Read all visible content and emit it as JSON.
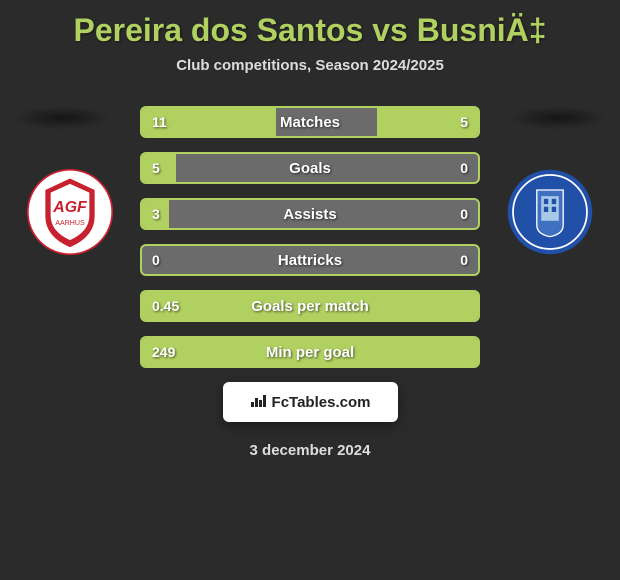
{
  "title": "Pereira dos Santos vs BusniÄ‡",
  "subtitle": "Club competitions, Season 2024/2025",
  "date": "3 december 2024",
  "footer": {
    "label": "FcTables.com"
  },
  "badges": {
    "left": {
      "primary_color": "#c8202e",
      "secondary_color": "#ffffff",
      "text": "AGF"
    },
    "right": {
      "primary_color": "#2050a8",
      "secondary_color": "#ffffff",
      "text": ""
    }
  },
  "stats": [
    {
      "label": "Matches",
      "left_value": "11",
      "right_value": "5",
      "left_fill_pct": 40,
      "right_fill_pct": 30,
      "left_color": "#b0d060",
      "right_color": "#b0d060"
    },
    {
      "label": "Goals",
      "left_value": "5",
      "right_value": "0",
      "left_fill_pct": 10,
      "right_fill_pct": 0,
      "left_color": "#b0d060",
      "right_color": "#b0d060"
    },
    {
      "label": "Assists",
      "left_value": "3",
      "right_value": "0",
      "left_fill_pct": 8,
      "right_fill_pct": 0,
      "left_color": "#b0d060",
      "right_color": "#b0d060"
    },
    {
      "label": "Hattricks",
      "left_value": "0",
      "right_value": "0",
      "left_fill_pct": 0,
      "right_fill_pct": 0,
      "left_color": "#b0d060",
      "right_color": "#b0d060"
    },
    {
      "label": "Goals per match",
      "left_value": "0.45",
      "right_value": "",
      "left_fill_pct": 100,
      "right_fill_pct": 0,
      "left_color": "#b0d060",
      "right_color": "#b0d060"
    },
    {
      "label": "Min per goal",
      "left_value": "249",
      "right_value": "",
      "left_fill_pct": 100,
      "right_fill_pct": 0,
      "left_color": "#b0d060",
      "right_color": "#b0d060"
    }
  ],
  "colors": {
    "accent": "#b0d060",
    "bar_bg": "#6b6b6b",
    "page_bg": "#2b2b2b"
  }
}
